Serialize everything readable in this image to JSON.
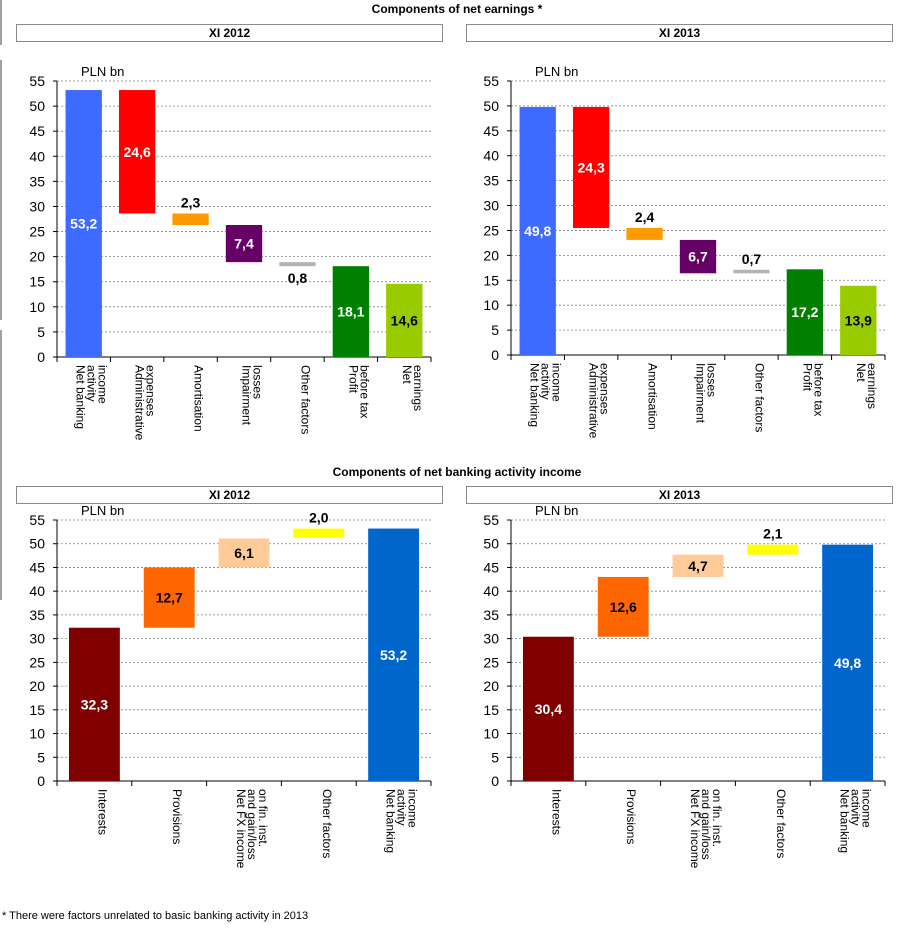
{
  "top_section_title": "Components of net earnings *",
  "bottom_section_title": "Components of net banking activity income",
  "footnote": "* There were factors unrelated to basic banking activity in 2013",
  "colors": {
    "blue": "#3d6aff",
    "red": "#ff0000",
    "orange": "#ff9900",
    "purple": "#660066",
    "grey": "#b3b3b3",
    "green": "#008000",
    "lightgreen": "#99cc00",
    "maroon": "#800000",
    "darkorange": "#ff6600",
    "peach": "#ffcc99",
    "yellow": "#ffff00",
    "royal": "#0066cc"
  },
  "chart_data": [
    {
      "type": "bar",
      "subtype": "waterfall",
      "panel": "XI 2012",
      "unit_label": "PLN bn",
      "ylim": [
        0,
        55
      ],
      "yticks": [
        0,
        5,
        10,
        15,
        20,
        25,
        30,
        35,
        40,
        45,
        50,
        55
      ],
      "grid": true,
      "categories": [
        "Net banking activity income",
        "Administrative expenses",
        "Amortisation",
        "Impairment losses",
        "Other factors",
        "Profit before tax",
        "Net earnings"
      ],
      "tick_labels": [
        [
          "Net banking",
          "activity",
          "income"
        ],
        [
          "Administrative",
          "expenses"
        ],
        [
          "Amortisation"
        ],
        [
          "Impairment",
          "losses"
        ],
        [
          "Other factors"
        ],
        [
          "Profit",
          "before tax"
        ],
        [
          "Net",
          "earnings"
        ]
      ],
      "values": [
        53.2,
        24.6,
        2.3,
        7.4,
        0.8,
        18.1,
        14.6
      ],
      "bars": [
        {
          "bottom": 0,
          "top": 53.2,
          "value": 53.2,
          "label": "53,2",
          "color": "blue",
          "label_pos": "inside",
          "label_color": "#ffffff"
        },
        {
          "bottom": 28.6,
          "top": 53.2,
          "value": 24.6,
          "label": "24,6",
          "color": "red",
          "label_pos": "inside",
          "label_color": "#ffffff"
        },
        {
          "bottom": 26.3,
          "top": 28.6,
          "value": 2.3,
          "label": "2,3",
          "color": "orange",
          "label_pos": "above",
          "label_color": "#000000"
        },
        {
          "bottom": 18.9,
          "top": 26.3,
          "value": 7.4,
          "label": "7,4",
          "color": "purple",
          "label_pos": "inside",
          "label_color": "#ffffff"
        },
        {
          "bottom": 18.1,
          "top": 18.9,
          "value": 0.8,
          "label": "0,8",
          "color": "grey",
          "label_pos": "below",
          "label_color": "#000000"
        },
        {
          "bottom": 0,
          "top": 18.1,
          "value": 18.1,
          "label": "18,1",
          "color": "green",
          "label_pos": "inside",
          "label_color": "#ffffff"
        },
        {
          "bottom": 0,
          "top": 14.6,
          "value": 14.6,
          "label": "14,6",
          "color": "lightgreen",
          "label_pos": "inside",
          "label_color": "#000000"
        }
      ]
    },
    {
      "type": "bar",
      "subtype": "waterfall",
      "panel": "XI 2013",
      "unit_label": "PLN bn",
      "ylim": [
        0,
        55
      ],
      "yticks": [
        0,
        5,
        10,
        15,
        20,
        25,
        30,
        35,
        40,
        45,
        50,
        55
      ],
      "grid": true,
      "categories": [
        "Net banking activity income",
        "Administrative expenses",
        "Amortisation",
        "Impairment losses",
        "Other factors",
        "Profit before tax",
        "Net earnings"
      ],
      "tick_labels": [
        [
          "Net banking",
          "activity",
          "income"
        ],
        [
          "Administrative",
          "expenses"
        ],
        [
          "Amortisation"
        ],
        [
          "Impairment",
          "losses"
        ],
        [
          "Other factors"
        ],
        [
          "Profit",
          "before tax"
        ],
        [
          "Net",
          "earnings"
        ]
      ],
      "values": [
        49.8,
        24.3,
        2.4,
        6.7,
        0.7,
        17.2,
        13.9
      ],
      "bars": [
        {
          "bottom": 0,
          "top": 49.8,
          "value": 49.8,
          "label": "49,8",
          "color": "blue",
          "label_pos": "inside",
          "label_color": "#ffffff"
        },
        {
          "bottom": 25.5,
          "top": 49.8,
          "value": 24.3,
          "label": "24,3",
          "color": "red",
          "label_pos": "inside",
          "label_color": "#ffffff"
        },
        {
          "bottom": 23.1,
          "top": 25.5,
          "value": 2.4,
          "label": "2,4",
          "color": "orange",
          "label_pos": "above",
          "label_color": "#000000"
        },
        {
          "bottom": 16.4,
          "top": 23.1,
          "value": 6.7,
          "label": "6,7",
          "color": "purple",
          "label_pos": "inside",
          "label_color": "#ffffff"
        },
        {
          "bottom": 16.4,
          "top": 17.1,
          "value": 0.7,
          "label": "0,7",
          "color": "grey",
          "label_pos": "above",
          "label_color": "#000000"
        },
        {
          "bottom": 0,
          "top": 17.2,
          "value": 17.2,
          "label": "17,2",
          "color": "green",
          "label_pos": "inside",
          "label_color": "#ffffff"
        },
        {
          "bottom": 0,
          "top": 13.9,
          "value": 13.9,
          "label": "13,9",
          "color": "lightgreen",
          "label_pos": "inside",
          "label_color": "#000000"
        }
      ]
    },
    {
      "type": "bar",
      "subtype": "waterfall",
      "panel": "XI 2012",
      "unit_label": "PLN bn",
      "ylim": [
        0,
        55
      ],
      "yticks": [
        0,
        5,
        10,
        15,
        20,
        25,
        30,
        35,
        40,
        45,
        50,
        55
      ],
      "grid": true,
      "categories": [
        "Interests",
        "Provisions",
        "Net FX income and gain/loss on fin. inst.",
        "Other factors",
        "Net banking activity income"
      ],
      "tick_labels": [
        [
          "Interests"
        ],
        [
          "Provisions"
        ],
        [
          "Net FX income",
          "and gain/loss",
          "on fin. inst."
        ],
        [
          "Other factors"
        ],
        [
          "Net banking",
          "activity",
          "income"
        ]
      ],
      "values": [
        32.3,
        12.7,
        6.1,
        2.0,
        53.2
      ],
      "bars": [
        {
          "bottom": 0,
          "top": 32.3,
          "value": 32.3,
          "label": "32,3",
          "color": "maroon",
          "label_pos": "inside",
          "label_color": "#ffffff"
        },
        {
          "bottom": 32.3,
          "top": 45.0,
          "value": 12.7,
          "label": "12,7",
          "color": "darkorange",
          "label_pos": "inside",
          "label_color": "#000000"
        },
        {
          "bottom": 45.0,
          "top": 51.1,
          "value": 6.1,
          "label": "6,1",
          "color": "peach",
          "label_pos": "inside",
          "label_color": "#000000"
        },
        {
          "bottom": 51.3,
          "top": 53.2,
          "value": 2.0,
          "label": "2,0",
          "color": "yellow",
          "label_pos": "above",
          "label_color": "#000000"
        },
        {
          "bottom": 0,
          "top": 53.2,
          "value": 53.2,
          "label": "53,2",
          "color": "royal",
          "label_pos": "inside",
          "label_color": "#ffffff"
        }
      ]
    },
    {
      "type": "bar",
      "subtype": "waterfall",
      "panel": "XI 2013",
      "unit_label": "PLN bn",
      "ylim": [
        0,
        55
      ],
      "yticks": [
        0,
        5,
        10,
        15,
        20,
        25,
        30,
        35,
        40,
        45,
        50,
        55
      ],
      "grid": true,
      "categories": [
        "Interests",
        "Provisions",
        "Net FX income and gain/loss on fin. inst.",
        "Other factors",
        "Net banking activity income"
      ],
      "tick_labels": [
        [
          "Interests"
        ],
        [
          "Provisions"
        ],
        [
          "Net FX income",
          "and gain/loss",
          "on fin. inst."
        ],
        [
          "Other factors"
        ],
        [
          "Net banking",
          "activity",
          "income"
        ]
      ],
      "values": [
        30.4,
        12.6,
        4.7,
        2.1,
        49.8
      ],
      "bars": [
        {
          "bottom": 0,
          "top": 30.4,
          "value": 30.4,
          "label": "30,4",
          "color": "maroon",
          "label_pos": "inside",
          "label_color": "#ffffff"
        },
        {
          "bottom": 30.4,
          "top": 43.0,
          "value": 12.6,
          "label": "12,6",
          "color": "darkorange",
          "label_pos": "inside",
          "label_color": "#000000"
        },
        {
          "bottom": 43.0,
          "top": 47.7,
          "value": 4.7,
          "label": "4,7",
          "color": "peach",
          "label_pos": "inside",
          "label_color": "#000000"
        },
        {
          "bottom": 47.7,
          "top": 49.8,
          "value": 2.1,
          "label": "2,1",
          "color": "yellow",
          "label_pos": "above",
          "label_color": "#000000"
        },
        {
          "bottom": 0,
          "top": 49.8,
          "value": 49.8,
          "label": "49,8",
          "color": "royal",
          "label_pos": "inside",
          "label_color": "#ffffff"
        }
      ]
    }
  ]
}
